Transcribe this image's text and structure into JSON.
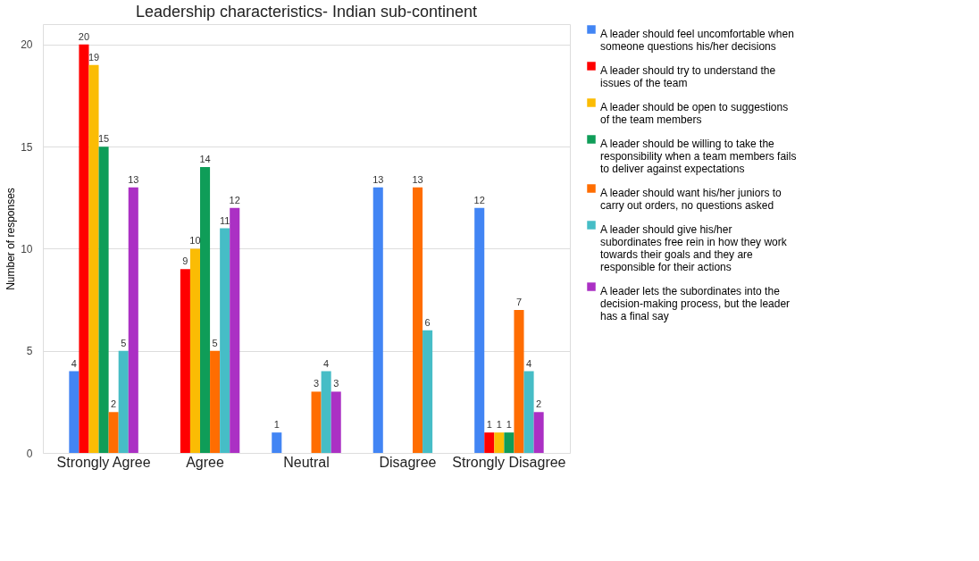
{
  "chart_data": {
    "type": "bar",
    "title": "Leadership characteristics- Indian sub-continent",
    "ylabel": "Number of responses",
    "categories": [
      "Strongly Agree",
      "Agree",
      "Neutral",
      "Disagree",
      "Strongly Disagree"
    ],
    "series": [
      {
        "name": "A leader should feel uncomfortable when someone questions his/her decisions",
        "color": "#4285f4",
        "values": [
          4,
          0,
          1,
          13,
          12
        ],
        "value_labels": [
          "4",
          null,
          "1",
          "13",
          "12"
        ]
      },
      {
        "name": "A leader should try to understand the issues of the team",
        "color": "#ff0000",
        "values": [
          20,
          9,
          0,
          0,
          1
        ],
        "value_labels": [
          "20",
          "9",
          null,
          null,
          "1"
        ]
      },
      {
        "name": "A leader should be open to suggestions of the team members",
        "color": "#fbbc04",
        "values": [
          19,
          10,
          0,
          0,
          1
        ],
        "value_labels": [
          "19",
          "10",
          null,
          null,
          "1"
        ]
      },
      {
        "name": "A leader should be willing to take the responsibility when a team members fails to deliver against expectations",
        "color": "#0f9d58",
        "values": [
          15,
          14,
          0,
          0,
          1
        ],
        "value_labels": [
          "15",
          "14",
          null,
          null,
          "1"
        ]
      },
      {
        "name": "A leader should want his/her juniors to carry out orders, no questions asked",
        "color": "#ff6d01",
        "values": [
          2,
          5,
          3,
          13,
          7
        ],
        "value_labels": [
          "2",
          "5",
          "3",
          "13",
          "7"
        ]
      },
      {
        "name": "A leader should give his/her subordinates free rein in how they work towards their goals and they are responsible for their actions",
        "color": "#46bdc6",
        "values": [
          5,
          11,
          4,
          6,
          4
        ],
        "value_labels": [
          "5",
          "11",
          "4",
          "6",
          "4"
        ]
      },
      {
        "name": "A leader lets the subordinates into the decision-making process, but the leader has a final say",
        "color": "#ab30c4",
        "values": [
          13,
          12,
          3,
          0,
          2
        ],
        "value_labels": [
          "13",
          "12",
          "3",
          null,
          "2"
        ]
      }
    ],
    "ylim": [
      0,
      21
    ],
    "yticks": [
      0,
      5,
      10,
      15,
      20
    ],
    "grid": "y",
    "legend": "right"
  }
}
